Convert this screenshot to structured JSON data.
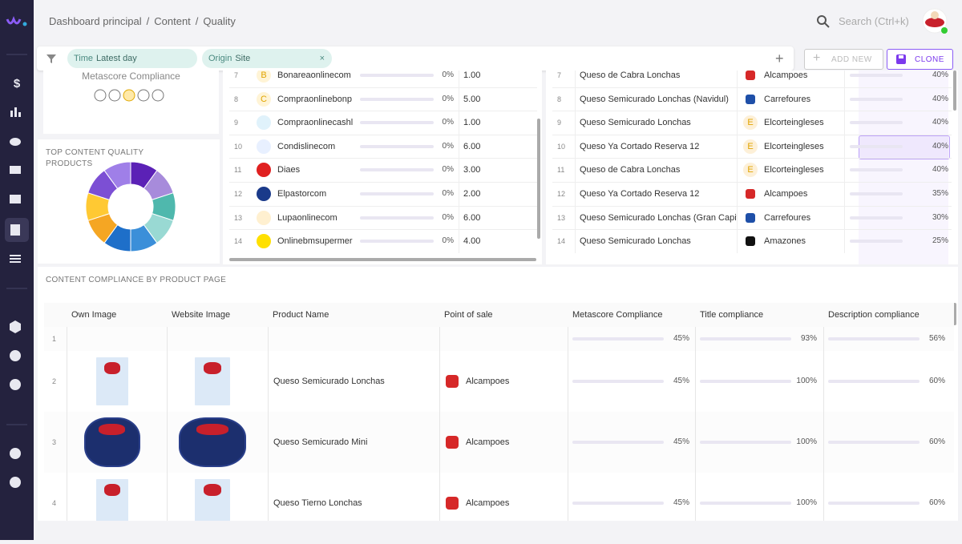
{
  "breadcrumb": [
    "Dashboard principal",
    "Content",
    "Quality"
  ],
  "search_placeholder": "Search (Ctrl+k)",
  "filters": [
    {
      "label": "Time",
      "value": "Latest day"
    },
    {
      "label": "Origin",
      "value": "Site"
    }
  ],
  "actions": {
    "add": "ADD NEW",
    "clone": "CLONE"
  },
  "metascore_card": {
    "title": "Metascore Compliance"
  },
  "top_products_card": {
    "title": "TOP CONTENT QUALITY PRODUCTS",
    "chart_data": {
      "type": "pie",
      "values": [
        10,
        10,
        10,
        10,
        10,
        10,
        10,
        10,
        10,
        10
      ],
      "colors": [
        "#5b21b6",
        "#a78bdb",
        "#4fb8ad",
        "#99d9d3",
        "#3b8fd9",
        "#1e6fc9",
        "#f5a623",
        "#ffc933",
        "#7c4fd4",
        "#9f7fe8"
      ]
    }
  },
  "sites_table": {
    "rows": [
      {
        "index": "7",
        "logo": "B",
        "name": "Bonareaonlinecom",
        "pct": 0,
        "pct_label": "0%",
        "score": "1.00"
      },
      {
        "index": "8",
        "logo": "C",
        "name": "Compraonlinebonp",
        "pct": 0,
        "pct_label": "0%",
        "score": "5.00"
      },
      {
        "index": "9",
        "name": "Compraonlinecashl",
        "pct": 0,
        "pct_label": "0%",
        "score": "1.00"
      },
      {
        "index": "10",
        "name": "Condislinecom",
        "pct": 0,
        "pct_label": "0%",
        "score": "6.00"
      },
      {
        "index": "11",
        "name": "Diaes",
        "pct": 0,
        "pct_label": "0%",
        "score": "3.00"
      },
      {
        "index": "12",
        "name": "Elpastorcom",
        "pct": 0,
        "pct_label": "0%",
        "score": "2.00"
      },
      {
        "index": "13",
        "name": "Lupaonlinecom",
        "pct": 0,
        "pct_label": "0%",
        "score": "6.00"
      },
      {
        "index": "14",
        "name": "Onlinebmsupermer",
        "pct": 0,
        "pct_label": "0%",
        "score": "4.00"
      }
    ]
  },
  "products_table": {
    "rows": [
      {
        "index": "7",
        "product": "Queso de Cabra Lonchas",
        "retailer": "Alcampoes",
        "pct": 40,
        "pct_label": "40%"
      },
      {
        "index": "8",
        "product": "Queso Semicurado Lonchas (Navidul)",
        "retailer": "Carrefoures",
        "pct": 40,
        "pct_label": "40%"
      },
      {
        "index": "9",
        "product": "Queso Semicurado Lonchas",
        "logo": "E",
        "retailer": "Elcorteingleses",
        "pct": 40,
        "pct_label": "40%"
      },
      {
        "index": "10",
        "product": "Queso Ya Cortado Reserva 12",
        "logo": "E",
        "retailer": "Elcorteingleses",
        "pct": 40,
        "pct_label": "40%"
      },
      {
        "index": "11",
        "product": "Queso de Cabra Lonchas",
        "logo": "E",
        "retailer": "Elcorteingleses",
        "pct": 40,
        "pct_label": "40%"
      },
      {
        "index": "12",
        "product": "Queso Ya Cortado Reserva 12",
        "retailer": "Alcampoes",
        "pct": 35,
        "pct_label": "35%"
      },
      {
        "index": "13",
        "product": "Queso Semicurado Lonchas (Gran Capit",
        "retailer": "Carrefoures",
        "pct": 30,
        "pct_label": "30%"
      },
      {
        "index": "14",
        "product": "Queso Semicurado Lonchas",
        "retailer": "Amazones",
        "pct": 25,
        "pct_label": "25%"
      }
    ]
  },
  "compliance_section": {
    "title": "CONTENT COMPLIANCE BY PRODUCT PAGE",
    "columns": [
      "Own Image",
      "Website Image",
      "Product Name",
      "Point of sale",
      "Metascore Compliance",
      "Title compliance",
      "Description compliance"
    ],
    "rows": [
      {
        "index": "1",
        "metascore": 45,
        "metascore_label": "45%",
        "title": 93,
        "title_label": "93%",
        "description": 56,
        "description_label": "56%"
      },
      {
        "index": "2",
        "product": "Queso Semicurado Lonchas",
        "pos": "Alcampoes",
        "metascore": 45,
        "metascore_label": "45%",
        "title": 100,
        "title_label": "100%",
        "description": 60,
        "description_label": "60%"
      },
      {
        "index": "3",
        "product": "Queso Semicurado Mini",
        "pos": "Alcampoes",
        "metascore": 45,
        "metascore_label": "45%",
        "title": 100,
        "title_label": "100%",
        "description": 60,
        "description_label": "60%"
      },
      {
        "index": "4",
        "product": "Queso Tierno Lonchas",
        "pos": "Alcampoes",
        "metascore": 45,
        "metascore_label": "45%",
        "title": 100,
        "title_label": "100%",
        "description": 60,
        "description_label": "60%"
      }
    ]
  }
}
